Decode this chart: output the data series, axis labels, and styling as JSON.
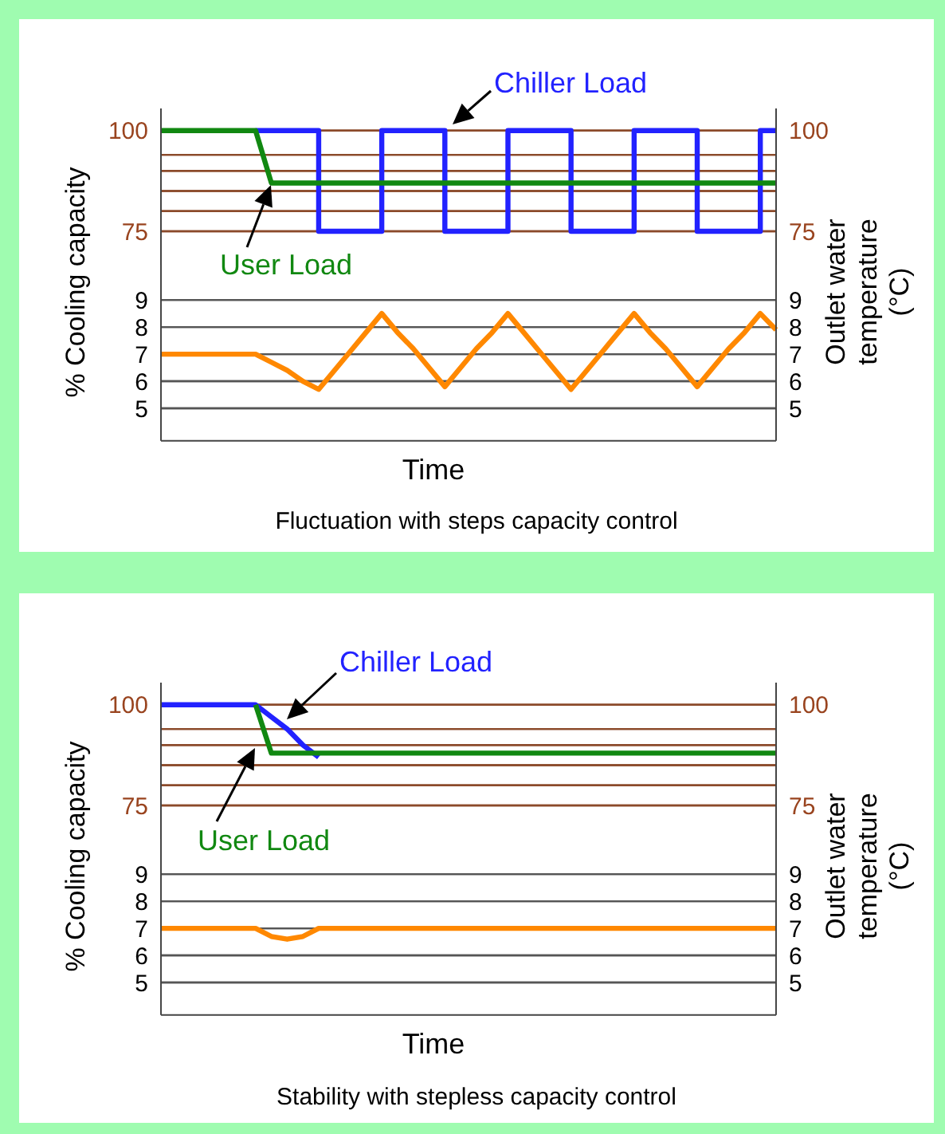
{
  "chart_data": [
    {
      "type": "line",
      "categories": [
        null,
        null,
        null,
        null,
        null,
        null,
        null,
        null,
        null,
        null,
        null,
        null,
        null,
        null,
        null,
        null,
        null,
        null,
        null,
        null,
        null,
        null,
        null,
        null,
        null,
        null,
        null,
        null,
        null,
        null,
        null,
        null,
        null,
        null,
        null,
        null,
        null,
        null,
        null,
        null
      ],
      "series": [
        {
          "name": "Chiller Load",
          "type": "step",
          "color": "#2222ff",
          "values": [
            null,
            null,
            null,
            null,
            null,
            null,
            100,
            100,
            100,
            100,
            75,
            75,
            75,
            75,
            100,
            100,
            100,
            100,
            75,
            75,
            75,
            75,
            100,
            100,
            100,
            100,
            75,
            75,
            75,
            75,
            100,
            100,
            100,
            100,
            75,
            75,
            75,
            75,
            100,
            100
          ]
        },
        {
          "name": "User Load",
          "color": "#118811",
          "values": [
            100,
            100,
            100,
            100,
            100,
            100,
            100,
            87,
            87,
            87,
            87,
            87,
            87,
            87,
            87,
            87,
            87,
            87,
            87,
            87,
            87,
            87,
            87,
            87,
            87,
            87,
            87,
            87,
            87,
            87,
            87,
            87,
            87,
            87,
            87,
            87,
            87,
            87,
            87,
            87
          ]
        }
      ],
      "ylim": [
        66.5,
        105.5
      ],
      "yticks": [
        100,
        {
          "value": 94,
          "label": null
        },
        {
          "value": 90,
          "label": null
        },
        {
          "value": 85,
          "label": null
        },
        {
          "value": 80,
          "label": null
        },
        75
      ],
      "y2lim": [
        66.5,
        105.5
      ],
      "y2ticks": [
        100,
        {
          "value": 94,
          "label": null
        },
        {
          "value": 90,
          "label": null
        },
        {
          "value": 85,
          "label": null
        },
        {
          "value": 80,
          "label": null
        },
        75
      ],
      "grid": "y",
      "ylabel": "% Cooling capacity"
    },
    {
      "type": "line",
      "categories": [
        null,
        null,
        null,
        null,
        null,
        null,
        null,
        null,
        null,
        null,
        null,
        null,
        null,
        null,
        null,
        null,
        null,
        null,
        null,
        null,
        null,
        null,
        null,
        null,
        null,
        null,
        null,
        null,
        null,
        null,
        null,
        null,
        null,
        null,
        null,
        null,
        null,
        null,
        null,
        null
      ],
      "series": [
        {
          "color": "#ff8800",
          "values": [
            7,
            7,
            7,
            7,
            7,
            7,
            7,
            6.7,
            6.4,
            6.0,
            5.7,
            6.4,
            7.1,
            7.8,
            8.5,
            7.8,
            7.2,
            6.5,
            5.8,
            6.5,
            7.2,
            7.8,
            8.5,
            7.8,
            7.1,
            6.4,
            5.7,
            6.4,
            7.1,
            7.8,
            8.5,
            7.8,
            7.2,
            6.5,
            5.8,
            6.5,
            7.2,
            7.8,
            8.5,
            7.9
          ]
        }
      ],
      "ylim": [
        3.8,
        10.3
      ],
      "yticks": [
        5,
        6,
        7,
        8,
        9
      ],
      "y2lim": [
        3.8,
        10.3
      ],
      "y2ticks": [
        5,
        6,
        7,
        8,
        9
      ],
      "grid": "y",
      "xlabel": "Time",
      "y2label": "Outlet water temperature (°C)",
      "annotations": [
        "Fluctuation with steps capacity control"
      ]
    },
    {
      "type": "line",
      "categories": [
        null,
        null,
        null,
        null,
        null,
        null,
        null,
        null,
        null,
        null,
        null,
        null,
        null,
        null,
        null,
        null,
        null,
        null,
        null,
        null,
        null,
        null,
        null,
        null,
        null,
        null,
        null,
        null,
        null,
        null,
        null,
        null,
        null,
        null,
        null,
        null,
        null,
        null,
        null,
        null
      ],
      "series": [
        {
          "name": "Chiller Load",
          "color": "#2222ff",
          "values": [
            100,
            100,
            100,
            100,
            100,
            100,
            100,
            97,
            94,
            90,
            87,
            null,
            null,
            null,
            null,
            null,
            null,
            null,
            null,
            null,
            null,
            null,
            null,
            null,
            null,
            null,
            null,
            null,
            null,
            null,
            null,
            null,
            null,
            null,
            null,
            null,
            null,
            null,
            null,
            null
          ]
        },
        {
          "name": "User Load",
          "color": "#118811",
          "values": [
            null,
            null,
            null,
            null,
            null,
            null,
            100,
            88,
            88,
            88,
            88,
            88,
            88,
            88,
            88,
            88,
            88,
            88,
            88,
            88,
            88,
            88,
            88,
            88,
            88,
            88,
            88,
            88,
            88,
            88,
            88,
            88,
            88,
            88,
            88,
            88,
            88,
            88,
            88,
            88
          ]
        }
      ],
      "ylim": [
        66.5,
        105.5
      ],
      "yticks": [
        100,
        {
          "value": 94,
          "label": null
        },
        {
          "value": 90,
          "label": null
        },
        {
          "value": 85,
          "label": null
        },
        {
          "value": 80,
          "label": null
        },
        75
      ],
      "y2lim": [
        66.5,
        105.5
      ],
      "y2ticks": [
        100,
        {
          "value": 94,
          "label": null
        },
        {
          "value": 90,
          "label": null
        },
        {
          "value": 85,
          "label": null
        },
        {
          "value": 80,
          "label": null
        },
        75
      ],
      "grid": "y",
      "ylabel": "% Cooling capacity"
    },
    {
      "type": "line",
      "categories": [
        null,
        null,
        null,
        null,
        null,
        null,
        null,
        null,
        null,
        null,
        null,
        null,
        null,
        null,
        null,
        null,
        null,
        null,
        null,
        null,
        null,
        null,
        null,
        null,
        null,
        null,
        null,
        null,
        null,
        null,
        null,
        null,
        null,
        null,
        null,
        null,
        null,
        null,
        null,
        null
      ],
      "series": [
        {
          "color": "#ff8800",
          "values": [
            7,
            7,
            7,
            7,
            7,
            7,
            7,
            6.7,
            6.6,
            6.7,
            7,
            7,
            7,
            7,
            7,
            7,
            7,
            7,
            7,
            7,
            7,
            7,
            7,
            7,
            7,
            7,
            7,
            7,
            7,
            7,
            7,
            7,
            7,
            7,
            7,
            7,
            7,
            7,
            7,
            7
          ]
        }
      ],
      "ylim": [
        3.8,
        10.3
      ],
      "yticks": [
        5,
        6,
        7,
        8,
        9
      ],
      "y2lim": [
        3.8,
        10.3
      ],
      "y2ticks": [
        5,
        6,
        7,
        8,
        9
      ],
      "grid": "y",
      "xlabel": "Time",
      "y2label": "Outlet water temperature (°C)",
      "annotations": [
        "Stability with stepless capacity control"
      ]
    }
  ]
}
